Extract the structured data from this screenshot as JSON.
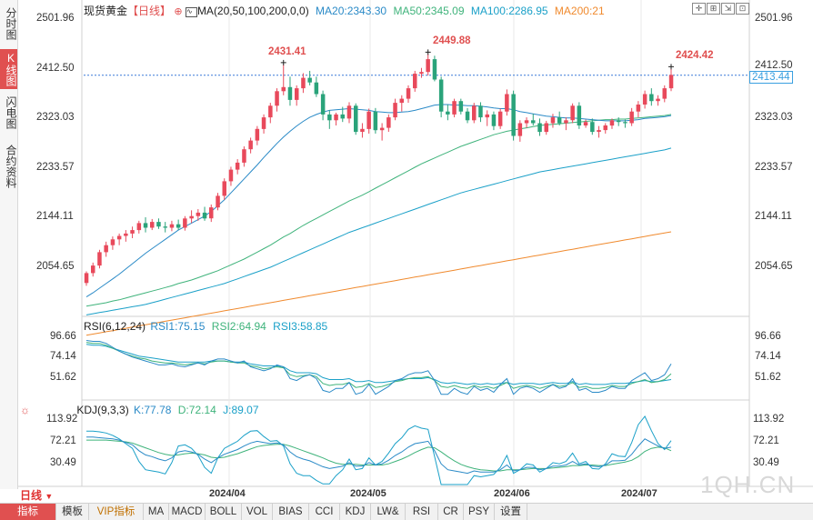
{
  "sidebar": {
    "tabs": [
      "分时图",
      "K线图",
      "闪电图",
      "合约资料"
    ],
    "active": 1
  },
  "header": {
    "instrument": "现货黄金",
    "period_tag": "【日线】",
    "ma_label": "MA(20,50,100,200,0,0)",
    "ma20": "MA20:2343.30",
    "ma50": "MA50:2345.09",
    "ma100": "MA100:2286.95",
    "ma200": "MA200:21"
  },
  "toolbar": {
    "icons": [
      "crosshair-icon",
      "grid-icon",
      "arrow-icon",
      "zoom-icon",
      "expand-icon"
    ]
  },
  "price_axis": {
    "ticks": [
      "2501.96",
      "2412.50",
      "2323.03",
      "2233.57",
      "2144.11",
      "2054.65"
    ],
    "current_price_tag": "2413.44",
    "dashed_level": "2412.50"
  },
  "annotations": {
    "high1": "2431.41",
    "high2": "2449.88",
    "high3": "2424.42"
  },
  "rsi": {
    "label": "RSI(6,12,24)",
    "rsi1": "RSI1:75.15",
    "rsi2": "RSI2:64.94",
    "rsi3": "RSI3:58.85",
    "ticks": [
      "96.66",
      "74.14",
      "51.62"
    ]
  },
  "kdj": {
    "label": "KDJ(9,3,3)",
    "k": "K:77.78",
    "d": "D:72.14",
    "j": "J:89.07",
    "ticks": [
      "113.92",
      "72.21",
      "30.49"
    ]
  },
  "date_axis": [
    "2024/04",
    "2024/05",
    "2024/06",
    "2024/07"
  ],
  "period_label": "日线",
  "bottom_tabs": [
    "指标",
    "模板",
    "VIP指标",
    "MA",
    "MACD",
    "BOLL",
    "VOL",
    "BIAS",
    "CCI",
    "KDJ",
    "LW&",
    "RSI",
    "CR",
    "PSY",
    "设置"
  ],
  "bottom_active": 0,
  "watermark": "1QH.CN",
  "colors": {
    "up": "#e8495b",
    "down": "#2aa37a",
    "ma20": "#2a8ac7",
    "ma50": "#3fb37b",
    "ma100": "#1aa0c8",
    "ma200": "#f08a2e",
    "rsi1": "#2a8ac7",
    "rsi2": "#3fb37b",
    "rsi3": "#1aa0c8"
  },
  "chart_data": {
    "type": "candlestick",
    "price_range": [
      2010,
      2520
    ],
    "candles": [
      [
        2055,
        2075,
        2050,
        2072
      ],
      [
        2072,
        2090,
        2066,
        2085
      ],
      [
        2085,
        2112,
        2080,
        2108
      ],
      [
        2108,
        2126,
        2100,
        2120
      ],
      [
        2120,
        2135,
        2112,
        2130
      ],
      [
        2130,
        2140,
        2120,
        2136
      ],
      [
        2136,
        2146,
        2126,
        2140
      ],
      [
        2140,
        2152,
        2132,
        2146
      ],
      [
        2146,
        2162,
        2140,
        2158
      ],
      [
        2158,
        2168,
        2142,
        2150
      ],
      [
        2150,
        2165,
        2146,
        2160
      ],
      [
        2160,
        2166,
        2148,
        2152
      ],
      [
        2152,
        2160,
        2142,
        2150
      ],
      [
        2150,
        2162,
        2144,
        2156
      ],
      [
        2156,
        2164,
        2146,
        2150
      ],
      [
        2150,
        2170,
        2145,
        2166
      ],
      [
        2166,
        2180,
        2158,
        2170
      ],
      [
        2170,
        2182,
        2162,
        2176
      ],
      [
        2176,
        2186,
        2162,
        2166
      ],
      [
        2166,
        2190,
        2160,
        2185
      ],
      [
        2185,
        2210,
        2180,
        2205
      ],
      [
        2205,
        2235,
        2198,
        2230
      ],
      [
        2230,
        2255,
        2222,
        2250
      ],
      [
        2250,
        2268,
        2242,
        2262
      ],
      [
        2262,
        2290,
        2255,
        2285
      ],
      [
        2285,
        2305,
        2278,
        2300
      ],
      [
        2300,
        2325,
        2292,
        2320
      ],
      [
        2320,
        2345,
        2312,
        2340
      ],
      [
        2340,
        2365,
        2330,
        2360
      ],
      [
        2360,
        2390,
        2350,
        2385
      ],
      [
        2385,
        2431,
        2378,
        2392
      ],
      [
        2392,
        2410,
        2360,
        2370
      ],
      [
        2370,
        2395,
        2360,
        2390
      ],
      [
        2390,
        2416,
        2382,
        2408
      ],
      [
        2408,
        2420,
        2395,
        2400
      ],
      [
        2400,
        2410,
        2375,
        2380
      ],
      [
        2380,
        2386,
        2335,
        2345
      ],
      [
        2345,
        2352,
        2320,
        2335
      ],
      [
        2335,
        2348,
        2326,
        2345
      ],
      [
        2345,
        2358,
        2332,
        2338
      ],
      [
        2338,
        2366,
        2330,
        2360
      ],
      [
        2360,
        2364,
        2310,
        2315
      ],
      [
        2315,
        2330,
        2305,
        2320
      ],
      [
        2320,
        2355,
        2312,
        2350
      ],
      [
        2350,
        2356,
        2312,
        2318
      ],
      [
        2318,
        2330,
        2300,
        2322
      ],
      [
        2322,
        2345,
        2315,
        2340
      ],
      [
        2340,
        2372,
        2335,
        2365
      ],
      [
        2365,
        2378,
        2350,
        2372
      ],
      [
        2372,
        2395,
        2365,
        2390
      ],
      [
        2390,
        2420,
        2384,
        2415
      ],
      [
        2415,
        2425,
        2408,
        2418
      ],
      [
        2418,
        2449,
        2412,
        2440
      ],
      [
        2440,
        2446,
        2402,
        2405
      ],
      [
        2405,
        2410,
        2340,
        2350
      ],
      [
        2350,
        2362,
        2335,
        2345
      ],
      [
        2345,
        2372,
        2340,
        2368
      ],
      [
        2368,
        2372,
        2345,
        2350
      ],
      [
        2350,
        2356,
        2330,
        2335
      ],
      [
        2335,
        2365,
        2330,
        2360
      ],
      [
        2360,
        2366,
        2332,
        2340
      ],
      [
        2340,
        2352,
        2325,
        2345
      ],
      [
        2345,
        2350,
        2318,
        2325
      ],
      [
        2325,
        2355,
        2320,
        2350
      ],
      [
        2350,
        2388,
        2343,
        2380
      ],
      [
        2380,
        2386,
        2300,
        2308
      ],
      [
        2308,
        2335,
        2298,
        2330
      ],
      [
        2330,
        2340,
        2322,
        2335
      ],
      [
        2335,
        2346,
        2326,
        2330
      ],
      [
        2330,
        2338,
        2308,
        2315
      ],
      [
        2315,
        2334,
        2310,
        2330
      ],
      [
        2330,
        2346,
        2322,
        2340
      ],
      [
        2340,
        2350,
        2326,
        2330
      ],
      [
        2330,
        2340,
        2318,
        2335
      ],
      [
        2335,
        2364,
        2330,
        2360
      ],
      [
        2360,
        2366,
        2320,
        2326
      ],
      [
        2326,
        2336,
        2322,
        2332
      ],
      [
        2332,
        2338,
        2310,
        2315
      ],
      [
        2315,
        2325,
        2305,
        2318
      ],
      [
        2318,
        2330,
        2312,
        2326
      ],
      [
        2326,
        2338,
        2320,
        2335
      ],
      [
        2335,
        2340,
        2325,
        2332
      ],
      [
        2332,
        2336,
        2322,
        2330
      ],
      [
        2330,
        2356,
        2325,
        2350
      ],
      [
        2350,
        2368,
        2340,
        2362
      ],
      [
        2362,
        2386,
        2355,
        2380
      ],
      [
        2380,
        2390,
        2360,
        2368
      ],
      [
        2368,
        2378,
        2360,
        2372
      ],
      [
        2372,
        2395,
        2366,
        2390
      ],
      [
        2390,
        2424,
        2385,
        2413
      ]
    ],
    "ma20": [
      2031,
      2038,
      2046,
      2054,
      2062,
      2070,
      2079,
      2088,
      2097,
      2106,
      2114,
      2122,
      2130,
      2138,
      2146,
      2152,
      2158,
      2164,
      2170,
      2178,
      2188,
      2198,
      2210,
      2222,
      2234,
      2246,
      2258,
      2271,
      2283,
      2295,
      2306,
      2316,
      2325,
      2333,
      2340,
      2345,
      2349,
      2352,
      2353,
      2354,
      2355,
      2354,
      2353,
      2352,
      2350,
      2349,
      2348,
      2348,
      2349,
      2350,
      2352,
      2355,
      2358,
      2361,
      2362,
      2362,
      2361,
      2361,
      2360,
      2360,
      2359,
      2358,
      2356,
      2355,
      2355,
      2353,
      2350,
      2348,
      2346,
      2344,
      2342,
      2341,
      2340,
      2339,
      2339,
      2338,
      2337,
      2336,
      2335,
      2334,
      2334,
      2334,
      2334,
      2335,
      2336,
      2338,
      2339,
      2340,
      2341,
      2343
    ],
    "ma50": [
      2015,
      2017,
      2019,
      2021,
      2024,
      2026,
      2029,
      2032,
      2035,
      2038,
      2041,
      2044,
      2047,
      2050,
      2054,
      2057,
      2060,
      2064,
      2068,
      2072,
      2076,
      2081,
      2086,
      2091,
      2096,
      2102,
      2108,
      2114,
      2120,
      2127,
      2134,
      2140,
      2147,
      2154,
      2160,
      2166,
      2172,
      2178,
      2184,
      2190,
      2196,
      2201,
      2206,
      2212,
      2218,
      2224,
      2230,
      2236,
      2242,
      2248,
      2254,
      2260,
      2265,
      2270,
      2275,
      2280,
      2285,
      2290,
      2294,
      2298,
      2302,
      2306,
      2310,
      2313,
      2316,
      2318,
      2320,
      2322,
      2324,
      2326,
      2327,
      2328,
      2329,
      2330,
      2331,
      2332,
      2333,
      2334,
      2335,
      2336,
      2336,
      2337,
      2337,
      2338,
      2339,
      2340,
      2341,
      2342,
      2343,
      2345
    ],
    "ma100": [
      2000,
      2002,
      2004,
      2006,
      2008,
      2010,
      2012,
      2014,
      2016,
      2018,
      2021,
      2024,
      2027,
      2030,
      2033,
      2036,
      2039,
      2042,
      2045,
      2048,
      2051,
      2054,
      2058,
      2062,
      2066,
      2070,
      2074,
      2078,
      2082,
      2087,
      2092,
      2097,
      2102,
      2107,
      2112,
      2117,
      2122,
      2127,
      2132,
      2137,
      2142,
      2146,
      2150,
      2154,
      2158,
      2162,
      2166,
      2170,
      2174,
      2178,
      2182,
      2186,
      2190,
      2194,
      2198,
      2202,
      2206,
      2210,
      2213,
      2216,
      2219,
      2222,
      2225,
      2228,
      2231,
      2234,
      2237,
      2240,
      2243,
      2246,
      2248,
      2250,
      2252,
      2254,
      2256,
      2258,
      2260,
      2262,
      2264,
      2266,
      2268,
      2270,
      2272,
      2274,
      2276,
      2278,
      2280,
      2282,
      2284,
      2287
    ],
    "ma200": [
      1965,
      1967,
      1969,
      1971,
      1973,
      1975,
      1977,
      1979,
      1981,
      1983,
      1985,
      1987,
      1989,
      1991,
      1993,
      1995,
      1997,
      1999,
      2001,
      2003,
      2005,
      2007,
      2009,
      2011,
      2013,
      2015,
      2017,
      2019,
      2021,
      2023,
      2025,
      2027,
      2029,
      2031,
      2033,
      2035,
      2037,
      2039,
      2041,
      2043,
      2045,
      2047,
      2049,
      2051,
      2053,
      2055,
      2057,
      2059,
      2061,
      2063,
      2065,
      2067,
      2069,
      2071,
      2073,
      2075,
      2077,
      2079,
      2081,
      2083,
      2085,
      2087,
      2089,
      2091,
      2093,
      2095,
      2097,
      2099,
      2101,
      2103,
      2105,
      2107,
      2109,
      2111,
      2113,
      2115,
      2117,
      2119,
      2121,
      2123,
      2125,
      2127,
      2129,
      2131,
      2133,
      2135,
      2137,
      2139,
      2141,
      2143
    ],
    "rsi_range": [
      40,
      105
    ],
    "rsi1": [
      99,
      98,
      98,
      96,
      92,
      88,
      85,
      82,
      80,
      78,
      76,
      74,
      74,
      75,
      73,
      72,
      74,
      76,
      74,
      78,
      80,
      80,
      78,
      76,
      78,
      72,
      70,
      68,
      70,
      74,
      72,
      60,
      58,
      62,
      64,
      60,
      48,
      46,
      50,
      50,
      56,
      44,
      46,
      54,
      44,
      48,
      52,
      58,
      60,
      64,
      66,
      66,
      68,
      58,
      44,
      44,
      50,
      46,
      44,
      52,
      48,
      50,
      46,
      54,
      60,
      44,
      50,
      52,
      50,
      46,
      50,
      54,
      50,
      52,
      60,
      48,
      50,
      46,
      46,
      48,
      52,
      50,
      50,
      58,
      62,
      66,
      58,
      60,
      64,
      75
    ],
    "rsi2": [
      97,
      96,
      96,
      94,
      91,
      88,
      85,
      83,
      81,
      80,
      78,
      77,
      76,
      76,
      75,
      74,
      75,
      76,
      75,
      77,
      78,
      78,
      77,
      76,
      76,
      73,
      72,
      70,
      71,
      72,
      71,
      64,
      62,
      63,
      64,
      62,
      55,
      53,
      54,
      54,
      56,
      51,
      52,
      55,
      51,
      52,
      54,
      57,
      58,
      60,
      61,
      61,
      62,
      58,
      52,
      51,
      53,
      51,
      50,
      53,
      51,
      52,
      50,
      53,
      56,
      50,
      52,
      53,
      52,
      50,
      52,
      54,
      52,
      53,
      56,
      51,
      52,
      50,
      50,
      51,
      53,
      52,
      52,
      55,
      57,
      59,
      56,
      57,
      59,
      65
    ],
    "rsi3": [
      95,
      94,
      94,
      93,
      91,
      89,
      87,
      85,
      83,
      82,
      81,
      80,
      79,
      78,
      77,
      77,
      77,
      77,
      77,
      78,
      78,
      78,
      77,
      77,
      77,
      75,
      74,
      73,
      73,
      73,
      72,
      68,
      66,
      66,
      66,
      65,
      61,
      59,
      59,
      59,
      60,
      57,
      57,
      58,
      56,
      56,
      57,
      58,
      59,
      60,
      60,
      60,
      61,
      59,
      56,
      55,
      56,
      55,
      54,
      55,
      54,
      55,
      54,
      55,
      56,
      54,
      55,
      55,
      55,
      54,
      55,
      56,
      55,
      55,
      57,
      54,
      55,
      54,
      54,
      54,
      55,
      55,
      55,
      56,
      57,
      58,
      57,
      57,
      58,
      59
    ],
    "kdj_range": [
      15,
      130
    ],
    "k": [
      95,
      95,
      94,
      93,
      92,
      90,
      86,
      82,
      72,
      65,
      62,
      58,
      55,
      60,
      70,
      72,
      70,
      66,
      58,
      52,
      60,
      66,
      70,
      74,
      80,
      85,
      88,
      86,
      84,
      85,
      82,
      70,
      62,
      58,
      55,
      50,
      45,
      42,
      44,
      46,
      52,
      46,
      46,
      52,
      48,
      50,
      56,
      64,
      70,
      78,
      84,
      86,
      88,
      72,
      50,
      40,
      38,
      36,
      34,
      38,
      36,
      36,
      36,
      40,
      48,
      38,
      40,
      44,
      44,
      40,
      42,
      46,
      46,
      48,
      54,
      48,
      50,
      46,
      45,
      48,
      55,
      55,
      56,
      66,
      80,
      92,
      86,
      80,
      76,
      78
    ],
    "d": [
      90,
      90,
      90,
      90,
      89,
      88,
      87,
      85,
      81,
      77,
      73,
      69,
      66,
      64,
      65,
      67,
      68,
      67,
      65,
      61,
      60,
      61,
      64,
      67,
      71,
      75,
      79,
      81,
      82,
      83,
      83,
      80,
      76,
      72,
      68,
      64,
      60,
      55,
      51,
      49,
      49,
      49,
      48,
      48,
      48,
      48,
      50,
      54,
      58,
      63,
      69,
      74,
      78,
      77,
      70,
      62,
      55,
      49,
      45,
      42,
      40,
      39,
      38,
      38,
      40,
      40,
      40,
      41,
      42,
      42,
      42,
      43,
      44,
      45,
      47,
      47,
      48,
      48,
      47,
      47,
      49,
      51,
      53,
      56,
      62,
      71,
      76,
      78,
      77,
      72
    ],
    "j": [
      105,
      105,
      104,
      102,
      98,
      92,
      84,
      76,
      54,
      40,
      38,
      36,
      33,
      52,
      80,
      82,
      76,
      64,
      44,
      34,
      60,
      76,
      82,
      88,
      98,
      105,
      106,
      96,
      88,
      89,
      80,
      50,
      34,
      30,
      30,
      22,
      16,
      16,
      30,
      40,
      58,
      40,
      42,
      60,
      48,
      54,
      68,
      84,
      94,
      108,
      114,
      110,
      108,
      62,
      10,
      -4,
      4,
      10,
      12,
      30,
      28,
      30,
      32,
      44,
      64,
      34,
      40,
      50,
      48,
      36,
      42,
      52,
      50,
      54,
      68,
      50,
      54,
      42,
      41,
      50,
      67,
      63,
      62,
      86,
      116,
      134,
      106,
      84,
      74,
      89
    ]
  }
}
